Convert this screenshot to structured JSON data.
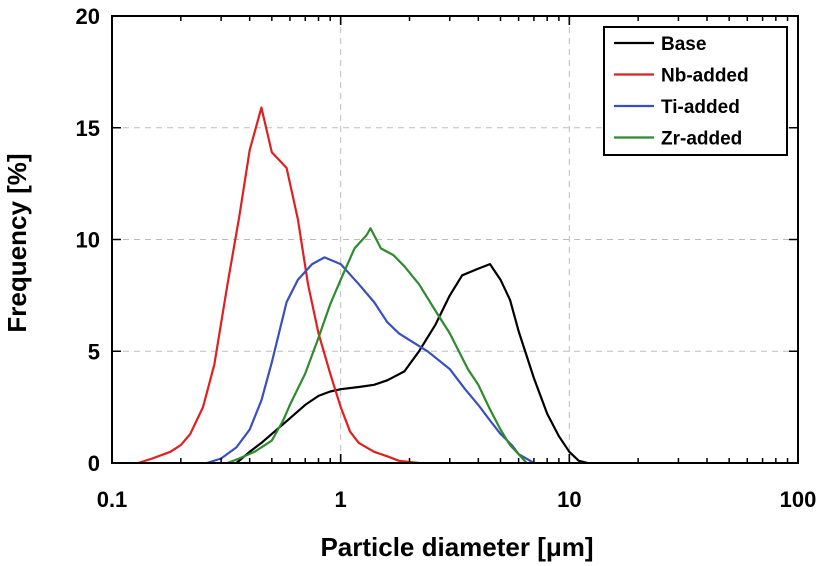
{
  "chart_data": {
    "type": "line",
    "xlabel": "Particle diameter [μm]",
    "ylabel": "Frequency [%]",
    "xscale": "log",
    "xlim": [
      0.1,
      100
    ],
    "ylim": [
      0,
      20
    ],
    "xticks": [
      0.1,
      1,
      10,
      100
    ],
    "xtick_labels": [
      "0.1",
      "1",
      "10",
      "100"
    ],
    "yticks": [
      0,
      5,
      10,
      15,
      20
    ],
    "ytick_labels": [
      "0",
      "5",
      "10",
      "15",
      "20"
    ],
    "grid": "dashed",
    "legend_position": "top-right",
    "series": [
      {
        "name": "Base",
        "color": "#000000",
        "points": [
          [
            0.35,
            0
          ],
          [
            0.4,
            0.5
          ],
          [
            0.45,
            0.9
          ],
          [
            0.5,
            1.3
          ],
          [
            0.6,
            2.0
          ],
          [
            0.7,
            2.6
          ],
          [
            0.8,
            3.0
          ],
          [
            0.9,
            3.2
          ],
          [
            1.0,
            3.3
          ],
          [
            1.2,
            3.4
          ],
          [
            1.4,
            3.5
          ],
          [
            1.6,
            3.7
          ],
          [
            1.9,
            4.1
          ],
          [
            2.2,
            5.0
          ],
          [
            2.6,
            6.2
          ],
          [
            3.0,
            7.5
          ],
          [
            3.4,
            8.4
          ],
          [
            4.0,
            8.7
          ],
          [
            4.5,
            8.9
          ],
          [
            5.0,
            8.2
          ],
          [
            5.5,
            7.3
          ],
          [
            6.0,
            5.9
          ],
          [
            7.0,
            3.8
          ],
          [
            8.0,
            2.2
          ],
          [
            9.0,
            1.2
          ],
          [
            10.0,
            0.5
          ],
          [
            11.0,
            0.1
          ],
          [
            12.0,
            0
          ]
        ]
      },
      {
        "name": "Nb-added",
        "color": "#e02020",
        "points": [
          [
            0.13,
            0
          ],
          [
            0.15,
            0.2
          ],
          [
            0.18,
            0.5
          ],
          [
            0.2,
            0.8
          ],
          [
            0.22,
            1.3
          ],
          [
            0.25,
            2.5
          ],
          [
            0.28,
            4.4
          ],
          [
            0.32,
            8.0
          ],
          [
            0.36,
            11.0
          ],
          [
            0.4,
            14.0
          ],
          [
            0.45,
            15.9
          ],
          [
            0.5,
            13.9
          ],
          [
            0.58,
            13.2
          ],
          [
            0.65,
            10.9
          ],
          [
            0.72,
            8.0
          ],
          [
            0.8,
            5.8
          ],
          [
            0.9,
            4.0
          ],
          [
            1.0,
            2.5
          ],
          [
            1.1,
            1.4
          ],
          [
            1.2,
            0.9
          ],
          [
            1.4,
            0.5
          ],
          [
            1.6,
            0.3
          ],
          [
            1.8,
            0.1
          ],
          [
            2.2,
            0
          ]
        ]
      },
      {
        "name": "Ti-added",
        "color": "#3a4fbf",
        "points": [
          [
            0.26,
            0
          ],
          [
            0.3,
            0.2
          ],
          [
            0.35,
            0.7
          ],
          [
            0.4,
            1.5
          ],
          [
            0.45,
            2.8
          ],
          [
            0.5,
            4.5
          ],
          [
            0.58,
            7.2
          ],
          [
            0.65,
            8.2
          ],
          [
            0.75,
            8.9
          ],
          [
            0.85,
            9.2
          ],
          [
            1.0,
            8.9
          ],
          [
            1.2,
            8.0
          ],
          [
            1.4,
            7.2
          ],
          [
            1.6,
            6.3
          ],
          [
            1.8,
            5.8
          ],
          [
            2.0,
            5.5
          ],
          [
            2.4,
            5.0
          ],
          [
            3.0,
            4.2
          ],
          [
            3.5,
            3.3
          ],
          [
            4.0,
            2.6
          ],
          [
            4.5,
            1.9
          ],
          [
            5.0,
            1.3
          ],
          [
            5.6,
            0.8
          ],
          [
            6.0,
            0.4
          ],
          [
            7.0,
            0
          ]
        ]
      },
      {
        "name": "Zr-added",
        "color": "#2e8b2e",
        "points": [
          [
            0.32,
            0
          ],
          [
            0.36,
            0.2
          ],
          [
            0.42,
            0.5
          ],
          [
            0.5,
            1.0
          ],
          [
            0.56,
            1.9
          ],
          [
            0.6,
            2.6
          ],
          [
            0.7,
            4.0
          ],
          [
            0.8,
            5.6
          ],
          [
            0.9,
            7.1
          ],
          [
            1.0,
            8.2
          ],
          [
            1.15,
            9.6
          ],
          [
            1.3,
            10.2
          ],
          [
            1.35,
            10.5
          ],
          [
            1.5,
            9.6
          ],
          [
            1.7,
            9.3
          ],
          [
            1.9,
            8.8
          ],
          [
            2.2,
            8.0
          ],
          [
            2.6,
            6.8
          ],
          [
            3.0,
            5.8
          ],
          [
            3.6,
            4.2
          ],
          [
            4.0,
            3.5
          ],
          [
            4.5,
            2.4
          ],
          [
            5.0,
            1.5
          ],
          [
            5.5,
            0.8
          ],
          [
            6.0,
            0.4
          ],
          [
            6.5,
            0
          ]
        ]
      }
    ]
  }
}
